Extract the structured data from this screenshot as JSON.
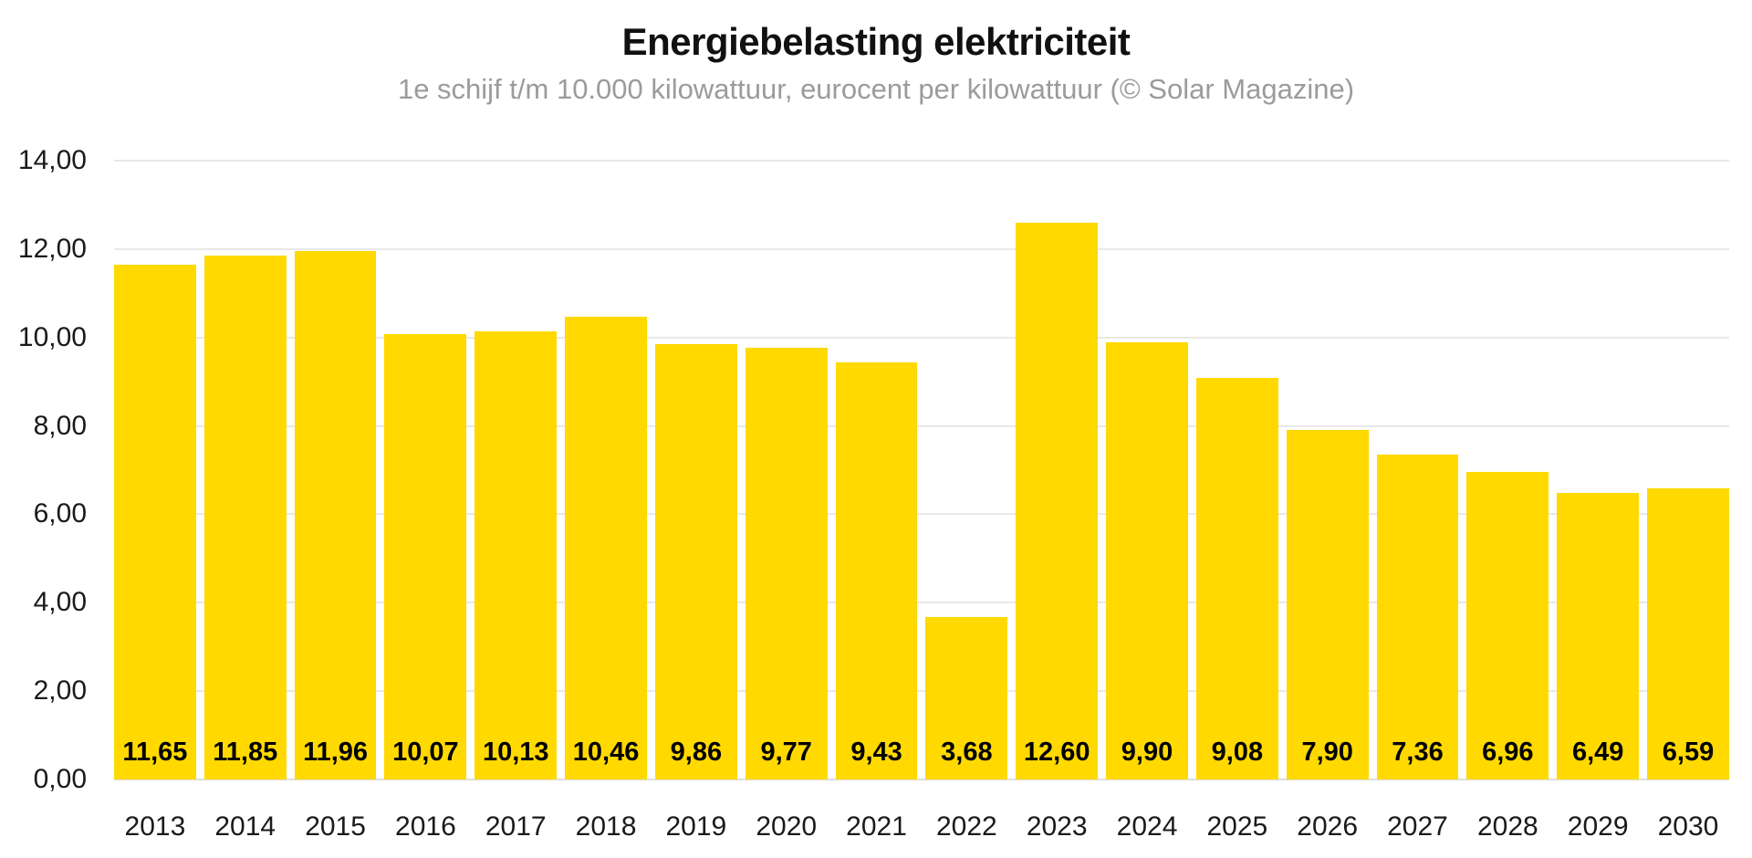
{
  "chart_data": {
    "type": "bar",
    "title": "Energiebelasting elektriciteit",
    "subtitle": "1e schijf t/m 10.000 kilowattuur, eurocent per kilowattuur (© Solar Magazine)",
    "xlabel": "",
    "ylabel": "",
    "categories": [
      "2013",
      "2014",
      "2015",
      "2016",
      "2017",
      "2018",
      "2019",
      "2020",
      "2021",
      "2022",
      "2023",
      "2024",
      "2025",
      "2026",
      "2027",
      "2028",
      "2029",
      "2030"
    ],
    "values": [
      11.65,
      11.85,
      11.96,
      10.07,
      10.13,
      10.46,
      9.86,
      9.77,
      9.43,
      3.68,
      12.6,
      9.9,
      9.08,
      7.9,
      7.36,
      6.96,
      6.49,
      6.59
    ],
    "value_labels": [
      "11,65",
      "11,85",
      "11,96",
      "10,07",
      "10,13",
      "10,46",
      "9,86",
      "9,77",
      "9,43",
      "3,68",
      "12,60",
      "9,90",
      "9,08",
      "7,90",
      "7,36",
      "6,96",
      "6,49",
      "6,59"
    ],
    "ylim": [
      0,
      14
    ],
    "y_ticks": [
      {
        "value": 14,
        "label": "14,00"
      },
      {
        "value": 12,
        "label": "12,00"
      },
      {
        "value": 10,
        "label": "10,00"
      },
      {
        "value": 8,
        "label": "8,00"
      },
      {
        "value": 6,
        "label": "6,00"
      },
      {
        "value": 4,
        "label": "4,00"
      },
      {
        "value": 2,
        "label": "2,00"
      },
      {
        "value": 0,
        "label": "0,00"
      }
    ],
    "grid": true,
    "legend": "none",
    "bar_color": "#FFD900",
    "gridline_color": "#e8e8e8",
    "title_color": "#111111",
    "subtitle_color": "#9b9b9b"
  }
}
